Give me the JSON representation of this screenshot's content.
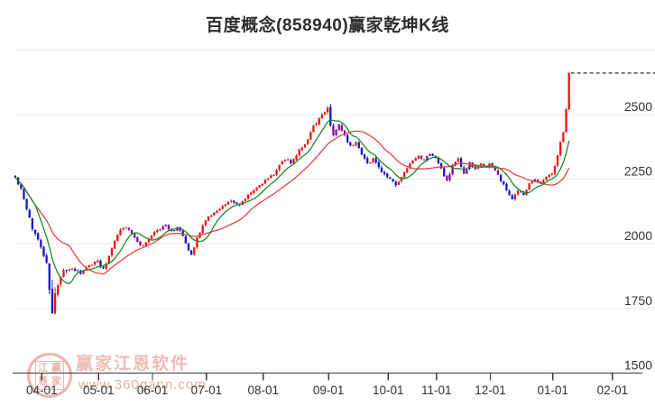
{
  "header": {
    "title": "百度概念(858940)赢家乾坤K线"
  },
  "watermark": {
    "brand": "赢家江恩软件",
    "url": "www.360gann.com",
    "seal_chars": [
      "江",
      "赢",
      "恩",
      "家"
    ]
  },
  "chart_data": {
    "type": "candlestick",
    "title": "百度概念(858940)赢家乾坤K线",
    "ylim": [
      1500,
      2750
    ],
    "y_axis_labels": [
      2500,
      2250,
      2000,
      1750,
      1500
    ],
    "grid_lines": [
      2750,
      2500,
      2250,
      2000,
      1750
    ],
    "baseline_value": 1500,
    "x_ticks": [
      {
        "label": "04-01",
        "day": 9
      },
      {
        "label": "05-01",
        "day": 29
      },
      {
        "label": "06-01",
        "day": 48
      },
      {
        "label": "07-01",
        "day": 67
      },
      {
        "label": "08-01",
        "day": 87
      },
      {
        "label": "09-01",
        "day": 110
      },
      {
        "label": "10-01",
        "day": 131
      },
      {
        "label": "11-01",
        "day": 148
      },
      {
        "label": "12-01",
        "day": 167
      },
      {
        "label": "01-01",
        "day": 189
      },
      {
        "label": "02-01",
        "day": 210
      }
    ],
    "candle_count": 196,
    "price_keyframes": [
      [
        0,
        2255,
        8
      ],
      [
        2,
        2210,
        12
      ],
      [
        4,
        2130,
        16
      ],
      [
        6,
        2060,
        18
      ],
      [
        9,
        1995,
        20
      ],
      [
        11,
        1920,
        28
      ],
      [
        12,
        1830,
        45
      ],
      [
        13,
        1720,
        70
      ],
      [
        14,
        1790,
        45
      ],
      [
        15,
        1850,
        30
      ],
      [
        17,
        1890,
        18
      ],
      [
        20,
        1905,
        12
      ],
      [
        23,
        1885,
        12
      ],
      [
        26,
        1915,
        12
      ],
      [
        29,
        1935,
        12
      ],
      [
        31,
        1900,
        14
      ],
      [
        33,
        1955,
        12
      ],
      [
        35,
        2015,
        12
      ],
      [
        37,
        2055,
        12
      ],
      [
        39,
        2065,
        10
      ],
      [
        41,
        2040,
        10
      ],
      [
        43,
        2005,
        10
      ],
      [
        45,
        1990,
        10
      ],
      [
        47,
        2015,
        10
      ],
      [
        49,
        2045,
        10
      ],
      [
        51,
        2055,
        10
      ],
      [
        53,
        2075,
        10
      ],
      [
        55,
        2045,
        10
      ],
      [
        57,
        2065,
        10
      ],
      [
        59,
        2030,
        12
      ],
      [
        61,
        1975,
        16
      ],
      [
        62,
        1955,
        14
      ],
      [
        64,
        2025,
        12
      ],
      [
        66,
        2070,
        10
      ],
      [
        68,
        2105,
        10
      ],
      [
        70,
        2120,
        10
      ],
      [
        73,
        2145,
        10
      ],
      [
        76,
        2165,
        10
      ],
      [
        79,
        2150,
        10
      ],
      [
        81,
        2175,
        10
      ],
      [
        83,
        2200,
        10
      ],
      [
        85,
        2215,
        10
      ],
      [
        87,
        2235,
        10
      ],
      [
        89,
        2255,
        10
      ],
      [
        91,
        2270,
        10
      ],
      [
        93,
        2305,
        12
      ],
      [
        95,
        2330,
        12
      ],
      [
        97,
        2310,
        12
      ],
      [
        99,
        2345,
        12
      ],
      [
        101,
        2375,
        14
      ],
      [
        103,
        2400,
        14
      ],
      [
        105,
        2450,
        16
      ],
      [
        107,
        2480,
        18
      ],
      [
        109,
        2515,
        20
      ],
      [
        110,
        2525,
        24
      ],
      [
        111,
        2465,
        26
      ],
      [
        112,
        2425,
        20
      ],
      [
        114,
        2455,
        16
      ],
      [
        116,
        2415,
        14
      ],
      [
        118,
        2380,
        14
      ],
      [
        120,
        2395,
        12
      ],
      [
        122,
        2350,
        12
      ],
      [
        124,
        2310,
        14
      ],
      [
        126,
        2330,
        12
      ],
      [
        128,
        2290,
        14
      ],
      [
        130,
        2270,
        14
      ],
      [
        132,
        2250,
        14
      ],
      [
        134,
        2225,
        14
      ],
      [
        136,
        2255,
        12
      ],
      [
        138,
        2290,
        12
      ],
      [
        140,
        2320,
        10
      ],
      [
        142,
        2335,
        10
      ],
      [
        144,
        2320,
        10
      ],
      [
        146,
        2350,
        10
      ],
      [
        148,
        2330,
        10
      ],
      [
        150,
        2290,
        12
      ],
      [
        152,
        2240,
        14
      ],
      [
        154,
        2300,
        12
      ],
      [
        156,
        2325,
        10
      ],
      [
        158,
        2265,
        14
      ],
      [
        160,
        2310,
        12
      ],
      [
        162,
        2285,
        12
      ],
      [
        164,
        2310,
        10
      ],
      [
        166,
        2295,
        10
      ],
      [
        167,
        2310,
        10
      ],
      [
        169,
        2285,
        10
      ],
      [
        171,
        2245,
        12
      ],
      [
        173,
        2205,
        12
      ],
      [
        175,
        2175,
        12
      ],
      [
        177,
        2205,
        10
      ],
      [
        179,
        2190,
        10
      ],
      [
        181,
        2230,
        10
      ],
      [
        183,
        2250,
        10
      ],
      [
        185,
        2235,
        10
      ],
      [
        187,
        2260,
        10
      ],
      [
        189,
        2275,
        10
      ],
      [
        190,
        2300,
        10
      ],
      [
        191,
        2345,
        12
      ],
      [
        192,
        2395,
        12
      ],
      [
        193,
        2435,
        12
      ],
      [
        194,
        2520,
        10
      ],
      [
        195,
        2660,
        6
      ]
    ],
    "purple_ranges": [
      [
        40,
        45
      ],
      [
        52,
        57
      ],
      [
        112,
        116
      ],
      [
        143,
        146
      ],
      [
        152,
        155
      ],
      [
        158,
        162
      ],
      [
        168,
        170
      ],
      [
        183,
        185
      ]
    ],
    "last_price": 2660,
    "ma_short_window": 8,
    "ma_long_window": 20,
    "colors": {
      "up": "#ee1212",
      "down": "#1414cc",
      "alt": "#7d0f8f",
      "ma_short": "#1d8a28",
      "ma_long": "#ef4040",
      "grid": "#e7e7e7",
      "axis": "#3a3a3a",
      "tick_label": "#333333",
      "dashed_line": "#1a1a1a"
    }
  }
}
